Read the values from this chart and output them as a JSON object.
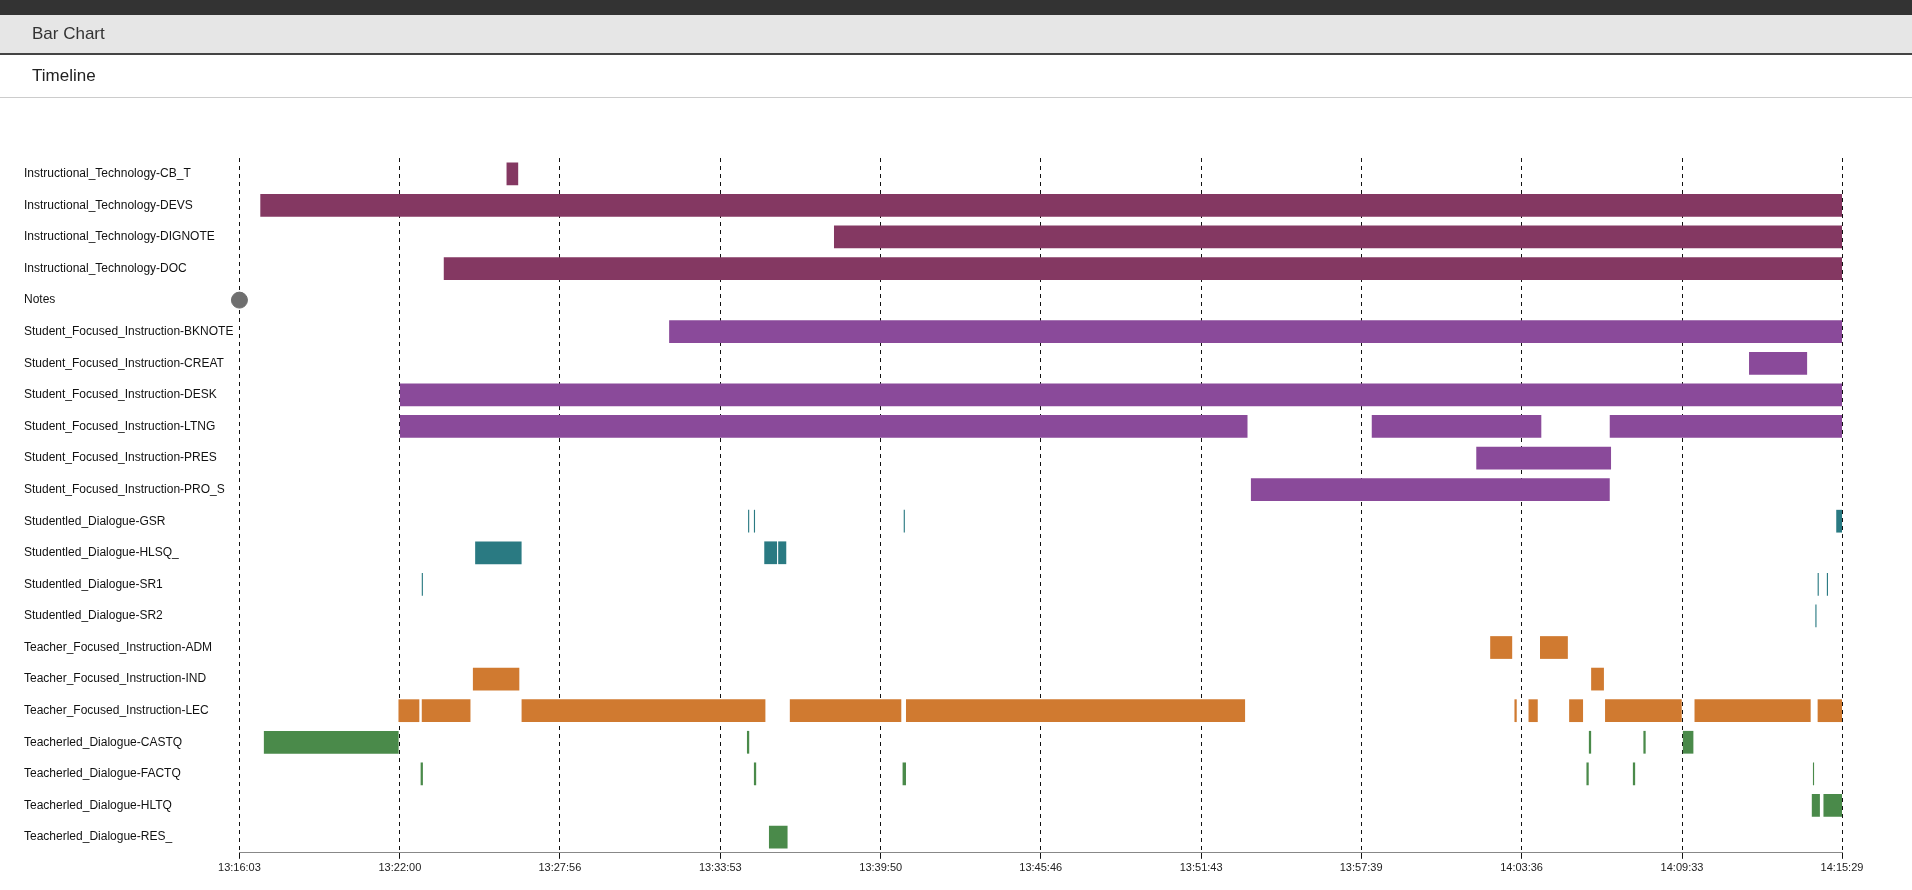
{
  "chart_data": {
    "type": "bar",
    "orientation": "horizontal",
    "title": "Bar Chart",
    "subtitle": "Timeline",
    "categories": [
      "Instructional_Technology-CB_T",
      "Instructional_Technology-DEVS",
      "Instructional_Technology-DIGNOTE",
      "Instructional_Technology-DOC",
      "Notes",
      "Student_Focused_Instruction-BKNOTE",
      "Student_Focused_Instruction-CREAT",
      "Student_Focused_Instruction-DESK",
      "Student_Focused_Instruction-LTNG",
      "Student_Focused_Instruction-PRES",
      "Student_Focused_Instruction-PRO_S",
      "Studentled_Dialogue-GSR",
      "Studentled_Dialogue-HLSQ_",
      "Studentled_Dialogue-SR1",
      "Studentled_Dialogue-SR2",
      "Teacher_Focused_Instruction-ADM",
      "Teacher_Focused_Instruction-IND",
      "Teacher_Focused_Instruction-LEC",
      "Teacherled_Dialogue-CASTQ",
      "Teacherled_Dialogue-FACTQ",
      "Teacherled_Dialogue-HLTQ",
      "Teacherled_Dialogue-RES_"
    ],
    "xlim": [
      13.2675,
      14.25806
    ],
    "xticks": [
      {
        "value": 13.2675,
        "label": "13:16:03"
      },
      {
        "value": 13.36667,
        "label": "13:22:00"
      },
      {
        "value": 13.46556,
        "label": "13:27:56"
      },
      {
        "value": 13.56472,
        "label": "13:33:53"
      },
      {
        "value": 13.66389,
        "label": "13:39:50"
      },
      {
        "value": 13.76278,
        "label": "13:45:46"
      },
      {
        "value": 13.86194,
        "label": "13:51:43"
      },
      {
        "value": 13.96083,
        "label": "13:57:39"
      },
      {
        "value": 14.06,
        "label": "14:03:36"
      },
      {
        "value": 14.15917,
        "label": "14:09:33"
      },
      {
        "value": 14.25806,
        "label": "14:15:29"
      }
    ],
    "grid": "x",
    "series": [
      {
        "type": "bar",
        "colors": [
          "#843862",
          "#843862",
          "#843862",
          "#843862",
          null,
          "#8a4a9a",
          "#8a4a9a",
          "#8a4a9a",
          "#8a4a9a",
          "#8a4a9a",
          "#8a4a9a",
          "#2a7a82",
          "#2a7a82",
          "#2a7a82",
          "#2a7a82",
          "#d07a30",
          "#d07a30",
          "#d07a30",
          "#4a8a4a",
          "#4a8a4a",
          "#4a8a4a",
          "#4a8a4a"
        ],
        "base": [
          13.4326,
          13.2804,
          13.635,
          13.3938,
          null,
          13.5331,
          14.2006,
          13.3667,
          13.3667,
          14.032,
          13.8927,
          13.5819,
          13.4132,
          13.3802,
          14.2416,
          14.0406,
          13.4118,
          13.3658,
          13.2826,
          13.3795,
          14.2394,
          13.5948
        ],
        "values": [
          0.0072,
          0.9777,
          0.6231,
          0.8643,
          null,
          0.725,
          0.0359,
          0.8914,
          0.5239,
          0.0833,
          0.2218,
          0.0007,
          0.0287,
          0.0007,
          0.0007,
          0.0136,
          0.0287,
          0.0129,
          0.0833,
          0.0014,
          0.005,
          0.0115
        ]
      },
      {
        "type": "bar",
        "colors": [
          "#843862",
          "#843862",
          "#843862",
          "#843862",
          null,
          "#8a4a9a",
          "#8a4a9a",
          "#8a4a9a",
          "#8a4a9a",
          "#8a4a9a",
          "#8a4a9a",
          "#2a7a82",
          "#2a7a82",
          "#2a7a82",
          "#2a7a82",
          "#d07a30",
          "#d07a30",
          "#d07a30",
          "#4a8a4a",
          "#4a8a4a",
          "#4a8a4a",
          "#4a8a4a"
        ],
        "base": [
          null,
          null,
          null,
          null,
          null,
          null,
          null,
          null,
          13.9674,
          null,
          null,
          13.5855,
          13.5919,
          14.243,
          null,
          14.0714,
          14.103,
          13.3802,
          13.5812,
          13.5855,
          14.2466,
          null
        ],
        "values": [
          null,
          null,
          null,
          null,
          null,
          null,
          null,
          null,
          0.1048,
          null,
          null,
          0.0007,
          0.0079,
          0.0007,
          null,
          0.0172,
          0.0079,
          0.0301,
          0.0014,
          0.0014,
          0.0115,
          null
        ]
      },
      {
        "type": "bar",
        "colors": [
          "#843862",
          "#843862",
          "#843862",
          "#843862",
          null,
          "#8a4a9a",
          "#8a4a9a",
          "#8a4a9a",
          "#8a4a9a",
          "#8a4a9a",
          "#8a4a9a",
          "#2a7a82",
          "#2a7a82",
          "#2a7a82",
          "#2a7a82",
          "#d07a30",
          "#d07a30",
          "#d07a30",
          "#4a8a4a",
          "#4a8a4a",
          "#4a8a4a",
          "#4a8a4a"
        ],
        "base": [
          null,
          null,
          null,
          null,
          null,
          null,
          null,
          null,
          14.1145,
          null,
          null,
          13.6781,
          13.6005,
          14.2487,
          null,
          null,
          null,
          13.4419,
          14.1016,
          13.6774,
          null,
          null
        ],
        "values": [
          null,
          null,
          null,
          null,
          null,
          null,
          null,
          null,
          0.1436,
          null,
          null,
          0.0007,
          0.005,
          0.0007,
          null,
          null,
          null,
          0.1507,
          0.0014,
          0.0021,
          null,
          null
        ]
      },
      {
        "type": "bar",
        "colors": [
          "#843862",
          "#843862",
          "#843862",
          "#843862",
          null,
          "#8a4a9a",
          "#8a4a9a",
          "#8a4a9a",
          "#8a4a9a",
          "#8a4a9a",
          "#8a4a9a",
          "#2a7a82",
          "#2a7a82",
          "#2a7a82",
          "#2a7a82",
          "#d07a30",
          "#d07a30",
          "#d07a30",
          "#4a8a4a",
          "#4a8a4a",
          "#4a8a4a",
          "#4a8a4a"
        ],
        "base": [
          null,
          null,
          null,
          null,
          null,
          null,
          null,
          null,
          null,
          null,
          null,
          14.2545,
          null,
          null,
          null,
          null,
          null,
          13.6077,
          14.1353,
          14.1001,
          null,
          null
        ],
        "values": [
          null,
          null,
          null,
          null,
          null,
          null,
          null,
          null,
          null,
          null,
          null,
          0.0036,
          null,
          null,
          null,
          null,
          null,
          0.0689,
          0.0014,
          0.0014,
          null,
          null
        ]
      },
      {
        "type": "bar",
        "colors": [
          "#843862",
          "#843862",
          "#843862",
          "#843862",
          null,
          "#8a4a9a",
          "#8a4a9a",
          "#8a4a9a",
          "#8a4a9a",
          "#8a4a9a",
          "#8a4a9a",
          "#2a7a82",
          "#2a7a82",
          "#2a7a82",
          "#2a7a82",
          "#d07a30",
          "#d07a30",
          "#d07a30",
          "#4a8a4a",
          "#4a8a4a",
          "#4a8a4a",
          "#4a8a4a"
        ],
        "base": [
          null,
          null,
          null,
          null,
          null,
          null,
          null,
          null,
          null,
          null,
          null,
          null,
          null,
          null,
          null,
          null,
          null,
          13.6795,
          14.1597,
          14.1288,
          null,
          null
        ],
        "values": [
          null,
          null,
          null,
          null,
          null,
          null,
          null,
          null,
          null,
          null,
          null,
          null,
          null,
          null,
          null,
          null,
          null,
          0.2096,
          0.0065,
          0.0014,
          null,
          null
        ]
      },
      {
        "type": "bar",
        "colors": [
          "#843862",
          "#843862",
          "#843862",
          "#843862",
          null,
          "#8a4a9a",
          "#8a4a9a",
          "#8a4a9a",
          "#8a4a9a",
          "#8a4a9a",
          "#8a4a9a",
          "#2a7a82",
          "#2a7a82",
          "#2a7a82",
          "#2a7a82",
          "#d07a30",
          "#d07a30",
          "#d07a30",
          "#4a8a4a",
          "#4a8a4a",
          "#4a8a4a",
          "#4a8a4a"
        ],
        "base": [
          null,
          null,
          null,
          null,
          null,
          null,
          null,
          null,
          null,
          null,
          null,
          null,
          null,
          null,
          null,
          null,
          null,
          14.0556,
          null,
          14.2401,
          null,
          null
        ],
        "values": [
          null,
          null,
          null,
          null,
          null,
          null,
          null,
          null,
          null,
          null,
          null,
          null,
          null,
          null,
          null,
          null,
          null,
          0.0014,
          null,
          0.0007,
          null,
          null
        ]
      },
      {
        "type": "bar",
        "colors": [
          "#843862",
          "#843862",
          "#843862",
          "#843862",
          null,
          "#8a4a9a",
          "#8a4a9a",
          "#8a4a9a",
          "#8a4a9a",
          "#8a4a9a",
          "#8a4a9a",
          "#2a7a82",
          "#2a7a82",
          "#2a7a82",
          "#2a7a82",
          "#d07a30",
          "#d07a30",
          "#d07a30",
          "#4a8a4a",
          "#4a8a4a",
          "#4a8a4a",
          "#4a8a4a"
        ],
        "base": [
          null,
          null,
          null,
          null,
          null,
          null,
          null,
          null,
          null,
          null,
          null,
          null,
          null,
          null,
          null,
          null,
          null,
          14.0643,
          null,
          null,
          null,
          null
        ],
        "values": [
          null,
          null,
          null,
          null,
          null,
          null,
          null,
          null,
          null,
          null,
          null,
          null,
          null,
          null,
          null,
          null,
          null,
          0.0057,
          null,
          null,
          null,
          null
        ]
      },
      {
        "type": "bar",
        "colors": [
          "#843862",
          "#843862",
          "#843862",
          "#843862",
          null,
          "#8a4a9a",
          "#8a4a9a",
          "#8a4a9a",
          "#8a4a9a",
          "#8a4a9a",
          "#8a4a9a",
          "#2a7a82",
          "#2a7a82",
          "#2a7a82",
          "#2a7a82",
          "#d07a30",
          "#d07a30",
          "#d07a30",
          "#4a8a4a",
          "#4a8a4a",
          "#4a8a4a",
          "#4a8a4a"
        ],
        "base": [
          null,
          null,
          null,
          null,
          null,
          null,
          null,
          null,
          null,
          null,
          null,
          null,
          null,
          null,
          null,
          null,
          null,
          14.0894,
          null,
          null,
          null,
          null
        ],
        "values": [
          null,
          null,
          null,
          null,
          null,
          null,
          null,
          null,
          null,
          null,
          null,
          null,
          null,
          null,
          null,
          null,
          null,
          0.0086,
          null,
          null,
          null,
          null
        ]
      },
      {
        "type": "bar",
        "colors": [
          "#843862",
          "#843862",
          "#843862",
          "#843862",
          null,
          "#8a4a9a",
          "#8a4a9a",
          "#8a4a9a",
          "#8a4a9a",
          "#8a4a9a",
          "#8a4a9a",
          "#2a7a82",
          "#2a7a82",
          "#2a7a82",
          "#2a7a82",
          "#d07a30",
          "#d07a30",
          "#d07a30",
          "#4a8a4a",
          "#4a8a4a",
          "#4a8a4a",
          "#4a8a4a"
        ],
        "base": [
          null,
          null,
          null,
          null,
          null,
          null,
          null,
          null,
          null,
          null,
          null,
          null,
          null,
          null,
          null,
          null,
          null,
          14.1116,
          null,
          null,
          null,
          null
        ],
        "values": [
          null,
          null,
          null,
          null,
          null,
          null,
          null,
          null,
          null,
          null,
          null,
          null,
          null,
          null,
          null,
          null,
          null,
          0.0474,
          null,
          null,
          null,
          null
        ]
      },
      {
        "type": "bar",
        "colors": [
          "#843862",
          "#843862",
          "#843862",
          "#843862",
          null,
          "#8a4a9a",
          "#8a4a9a",
          "#8a4a9a",
          "#8a4a9a",
          "#8a4a9a",
          "#8a4a9a",
          "#2a7a82",
          "#2a7a82",
          "#2a7a82",
          "#2a7a82",
          "#d07a30",
          "#d07a30",
          "#d07a30",
          "#4a8a4a",
          "#4a8a4a",
          "#4a8a4a",
          "#4a8a4a"
        ],
        "base": [
          null,
          null,
          null,
          null,
          null,
          null,
          null,
          null,
          null,
          null,
          null,
          null,
          null,
          null,
          null,
          null,
          null,
          14.1669,
          null,
          null,
          null,
          null
        ],
        "values": [
          null,
          null,
          null,
          null,
          null,
          null,
          null,
          null,
          null,
          null,
          null,
          null,
          null,
          null,
          null,
          null,
          null,
          0.0718,
          null,
          null,
          null,
          null
        ]
      },
      {
        "type": "bar",
        "colors": [
          "#843862",
          "#843862",
          "#843862",
          "#843862",
          null,
          "#8a4a9a",
          "#8a4a9a",
          "#8a4a9a",
          "#8a4a9a",
          "#8a4a9a",
          "#8a4a9a",
          "#2a7a82",
          "#2a7a82",
          "#2a7a82",
          "#2a7a82",
          "#d07a30",
          "#d07a30",
          "#d07a30",
          "#4a8a4a",
          "#4a8a4a",
          "#4a8a4a",
          "#4a8a4a"
        ],
        "base": [
          null,
          null,
          null,
          null,
          null,
          null,
          null,
          null,
          null,
          null,
          null,
          null,
          null,
          null,
          null,
          null,
          null,
          14.243,
          null,
          null,
          null,
          null
        ],
        "values": [
          null,
          null,
          null,
          null,
          null,
          null,
          null,
          null,
          null,
          null,
          null,
          null,
          null,
          null,
          null,
          null,
          null,
          0.0151,
          null,
          null,
          null,
          null
        ]
      },
      {
        "type": "scatter",
        "color": "#6f6f6f",
        "marker": "circle",
        "values": [
          null,
          null,
          null,
          null,
          13.2675,
          null,
          null,
          null,
          null,
          null,
          null,
          null,
          null,
          null,
          null,
          null,
          null,
          null,
          null,
          null,
          null,
          null
        ]
      }
    ]
  }
}
